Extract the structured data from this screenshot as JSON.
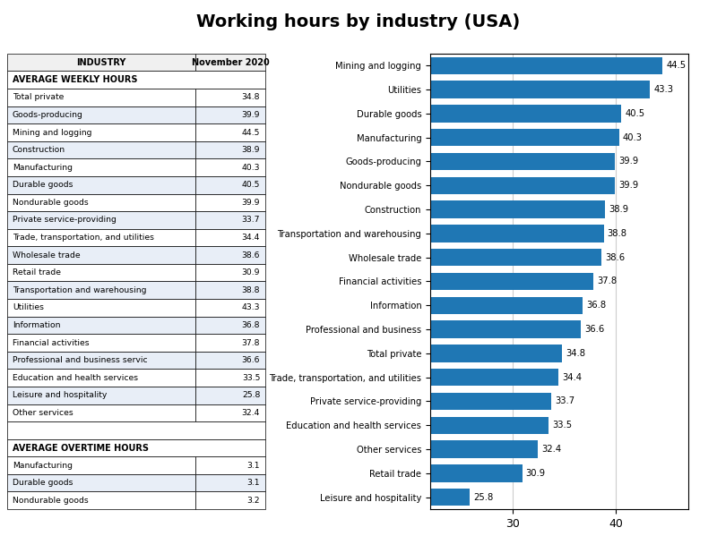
{
  "chart_data": [
    {
      "type": "table",
      "title": "AVERAGE WEEKLY HOURS",
      "xlabel": "INDUSTRY",
      "categories": [
        "Total private",
        "Goods-producing",
        "Mining and logging",
        "Construction",
        "Manufacturing",
        "Durable goods",
        "Nondurable goods",
        "Private service-providing",
        "Trade, transportation, and utilities",
        "Wholesale trade",
        "Retail trade",
        "Transportation and warehousing",
        "Utilities",
        "Information",
        "Financial activities",
        "Professional and business servic",
        "Education and health services",
        "Leisure and hospitality",
        "Other services"
      ],
      "series": [
        {
          "name": "November 2020",
          "values": [
            34.8,
            39.9,
            44.5,
            38.9,
            40.3,
            40.5,
            39.9,
            33.7,
            34.4,
            38.6,
            30.9,
            38.8,
            43.3,
            36.8,
            37.8,
            36.6,
            33.5,
            25.8,
            32.4
          ]
        }
      ]
    },
    {
      "type": "table",
      "title": "AVERAGE OVERTIME HOURS",
      "categories": [
        "Manufacturing",
        "Durable goods",
        "Nondurable goods"
      ],
      "values": [
        3.1,
        3.1,
        3.2
      ]
    },
    {
      "type": "bar",
      "title": "Working hours by industry (USA)",
      "orientation": "horizontal",
      "categories": [
        "Mining and logging",
        "Utilities",
        "Durable goods",
        "Manufacturing",
        "Goods-producing",
        "Nondurable goods",
        "Construction",
        "Transportation and warehousing",
        "Wholesale trade",
        "Financial activities",
        "Information",
        "Professional and business",
        "Total private",
        "Trade, transportation, and utilities",
        "Private service-providing",
        "Education and health services",
        "Other services",
        "Retail trade",
        "Leisure and hospitality"
      ],
      "values": [
        44.5,
        43.3,
        40.5,
        40.3,
        39.9,
        39.9,
        38.9,
        38.8,
        38.6,
        37.8,
        36.8,
        36.6,
        34.8,
        34.4,
        33.7,
        33.5,
        32.4,
        30.9,
        25.8
      ],
      "xlim": [
        22,
        47
      ],
      "xticks": [
        30,
        40
      ],
      "grid": true,
      "data_labels": true
    }
  ]
}
